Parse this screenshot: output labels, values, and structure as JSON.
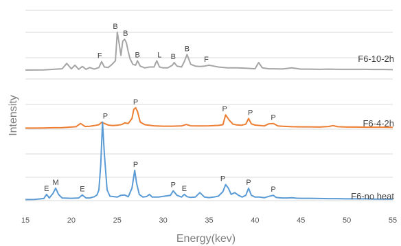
{
  "chart_data": {
    "type": "line",
    "xlabel": "Energy(kev)",
    "ylabel": "Intensity",
    "xlim": [
      15,
      55
    ],
    "x_ticks": [
      "15",
      "20",
      "25",
      "30",
      "35",
      "40",
      "45",
      "50",
      "55"
    ],
    "grid": true,
    "series": [
      {
        "name": "F6-10-2h",
        "color": "#a5a5a5",
        "x": [
          15,
          16,
          17,
          18,
          19,
          19.5,
          20,
          20.4,
          20.8,
          21.2,
          21.6,
          22,
          22.5,
          23,
          23.3,
          23.6,
          24,
          24.4,
          24.8,
          25,
          25.2,
          25.4,
          25.6,
          25.8,
          26,
          26.2,
          26.4,
          26.7,
          27,
          27.2,
          27.5,
          28,
          28.5,
          29,
          29.3,
          29.6,
          30,
          30.5,
          31,
          31.2,
          31.5,
          32,
          32.3,
          32.6,
          33,
          33.5,
          34,
          34.5,
          35,
          35.5,
          36,
          37,
          38,
          39,
          40,
          40.4,
          40.8,
          41.5,
          42,
          43,
          44,
          45,
          46,
          47,
          48,
          49,
          50,
          51,
          52,
          53,
          54,
          55
        ],
        "y": [
          0.8,
          0.8,
          0.9,
          1.2,
          1.5,
          4.5,
          1.5,
          3.5,
          1.2,
          2.8,
          1.2,
          2.2,
          1.3,
          2.2,
          5.5,
          2.5,
          2.2,
          3.8,
          6,
          22,
          16,
          9,
          17,
          18,
          16,
          11,
          7,
          4,
          3.5,
          6,
          3,
          2,
          2.5,
          2.5,
          6,
          2.5,
          2,
          2,
          3.5,
          5,
          3,
          2.5,
          5.5,
          9.5,
          4,
          3,
          2.8,
          3,
          3.5,
          3,
          2.5,
          2,
          2,
          1.8,
          1.5,
          5,
          2,
          1.5,
          1.5,
          1.4,
          2,
          1.3,
          1.3,
          1.2,
          1.3,
          1.2,
          1.2,
          1.2,
          1.2,
          1.1,
          1.1,
          1
        ]
      },
      {
        "name": "F6-4-2h",
        "color": "#ed7d31",
        "x": [
          15,
          16,
          17,
          18,
          19,
          20,
          20.5,
          21,
          21.5,
          22,
          22.5,
          23,
          23.3,
          23.7,
          24,
          24.5,
          25,
          25.5,
          25.8,
          26.2,
          26.6,
          26.8,
          27,
          27.2,
          27.5,
          28,
          29,
          30,
          31,
          32,
          32.5,
          33,
          34,
          35,
          36,
          36.5,
          36.8,
          37.2,
          37.6,
          38,
          38.5,
          39,
          39.3,
          39.6,
          40,
          41,
          41.5,
          42,
          42.5,
          43,
          44,
          45,
          46,
          47,
          48,
          48.5,
          49,
          50,
          51,
          52,
          53,
          54,
          55
        ],
        "y": [
          0.6,
          0.6,
          0.7,
          0.8,
          0.9,
          1.2,
          1.4,
          3.2,
          1.5,
          1.6,
          2,
          2.5,
          3.8,
          3,
          2.3,
          2,
          2.2,
          2.6,
          3.5,
          3.2,
          6,
          11,
          12,
          10,
          4,
          2.5,
          1.9,
          1.7,
          1.7,
          1.8,
          2.6,
          1.9,
          1.8,
          1.9,
          2.1,
          2.5,
          8,
          5,
          2.8,
          2.4,
          2.2,
          2.8,
          6,
          3,
          2.3,
          1.8,
          3,
          3.2,
          1.8,
          1.6,
          1.4,
          1.3,
          1.3,
          1.2,
          1.5,
          2,
          1.4,
          1.2,
          1.2,
          1.1,
          1.1,
          1.1,
          1
        ]
      },
      {
        "name": "F6-no heat",
        "color": "#5b9bd5",
        "x": [
          15,
          16,
          17,
          17.3,
          17.6,
          18,
          18.3,
          18.6,
          19,
          20,
          20.8,
          21.2,
          21.6,
          22,
          22.5,
          22.8,
          23,
          23.2,
          23.4,
          23.6,
          23.9,
          24.2,
          25,
          25.4,
          25.8,
          26.2,
          26.6,
          26.9,
          27.1,
          27.4,
          27.8,
          28.2,
          28.5,
          28.8,
          29.5,
          30,
          30.8,
          31.1,
          31.5,
          32,
          32.3,
          32.6,
          33,
          33.5,
          34,
          34.5,
          35,
          35.5,
          36,
          36.5,
          36.8,
          37.1,
          37.4,
          37.8,
          38.2,
          38.6,
          39,
          39.3,
          39.6,
          40,
          40.5,
          41,
          41.5,
          42,
          42.3,
          42.6,
          43,
          43.5,
          44,
          44.5,
          45,
          46,
          47,
          48,
          49,
          50,
          51,
          52,
          53,
          54,
          55
        ],
        "y": [
          0.6,
          0.7,
          1.2,
          3.5,
          1.5,
          4,
          7,
          3.5,
          1.5,
          1.3,
          1.5,
          3.2,
          1.5,
          1.5,
          2.2,
          3.2,
          6,
          20,
          44,
          26,
          6,
          2.5,
          2,
          3,
          3.2,
          2.2,
          7,
          17,
          10,
          3.5,
          2,
          2.3,
          3.5,
          2,
          2,
          2.4,
          3,
          5.5,
          3,
          2,
          3.5,
          2.2,
          1.8,
          2,
          4.5,
          2,
          1.7,
          2,
          2.5,
          5,
          9,
          7,
          3.5,
          4.5,
          3,
          2,
          3,
          7,
          3,
          2,
          2,
          1.6,
          2.4,
          3,
          1.8,
          1.6,
          1.5,
          1.5,
          1.6,
          1.4,
          1.3,
          1.3,
          1.2,
          1.1,
          1.1,
          1,
          1,
          1,
          0.9,
          0.9,
          0.9
        ]
      }
    ],
    "annotations": [
      {
        "text": "B",
        "x": 24.8,
        "series": 0
      },
      {
        "text": "B",
        "x": 25.9,
        "series": 0
      },
      {
        "text": "F",
        "x": 23.1,
        "series": 0
      },
      {
        "text": "B",
        "x": 27.2,
        "series": 0
      },
      {
        "text": "L",
        "x": 29.6,
        "series": 0
      },
      {
        "text": "B",
        "x": 31.1,
        "series": 0
      },
      {
        "text": "B",
        "x": 32.6,
        "series": 0
      },
      {
        "text": "F",
        "x": 34.7,
        "series": 0
      },
      {
        "text": "P",
        "x": 27.0,
        "series": 1
      },
      {
        "text": "P",
        "x": 36.7,
        "series": 1
      },
      {
        "text": "P",
        "x": 39.5,
        "series": 1
      },
      {
        "text": "P",
        "x": 42.0,
        "series": 1
      },
      {
        "text": "P",
        "x": 23.7,
        "series": 2
      },
      {
        "text": "P",
        "x": 27.0,
        "series": 2
      },
      {
        "text": "E",
        "x": 17.3,
        "series": 2
      },
      {
        "text": "M",
        "x": 18.3,
        "series": 2
      },
      {
        "text": "E",
        "x": 21.2,
        "series": 2
      },
      {
        "text": "P",
        "x": 31.1,
        "series": 2
      },
      {
        "text": "E",
        "x": 32.3,
        "series": 2
      },
      {
        "text": "P",
        "x": 36.5,
        "series": 2
      },
      {
        "text": "P",
        "x": 39.3,
        "series": 2
      },
      {
        "text": "P",
        "x": 42.0,
        "series": 2
      }
    ]
  }
}
